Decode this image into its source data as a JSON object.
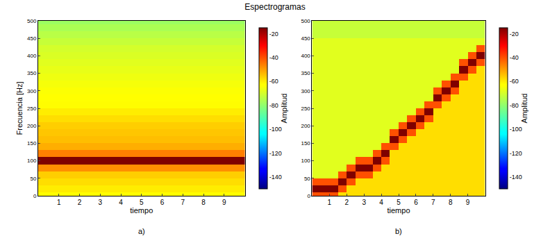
{
  "title": "Espectrogramas",
  "chart_data": [
    {
      "type": "heatmap",
      "label": "a)",
      "x_label": "tiempo",
      "y_label": "Frecuencia [Hz]",
      "x": [
        0.5,
        1.5,
        2.5,
        3.5,
        4.5,
        5.5,
        6.5,
        7.5,
        8.5,
        9.5
      ],
      "y": [
        0,
        20,
        40,
        60,
        80,
        100,
        120,
        140,
        160,
        180,
        200,
        220,
        240,
        260,
        280,
        300,
        320,
        340,
        360,
        380,
        400,
        420,
        440,
        460,
        480,
        500
      ],
      "z": [
        [
          -62,
          -62,
          -62,
          -62,
          -62,
          -62,
          -62,
          -62,
          -62,
          -62
        ],
        [
          -60,
          -60,
          -60,
          -60,
          -60,
          -60,
          -60,
          -60,
          -60,
          -60
        ],
        [
          -58,
          -58,
          -58,
          -58,
          -58,
          -58,
          -58,
          -58,
          -58,
          -58
        ],
        [
          -56,
          -56,
          -56,
          -56,
          -56,
          -56,
          -56,
          -56,
          -56,
          -56
        ],
        [
          -48,
          -48,
          -48,
          -48,
          -48,
          -48,
          -48,
          -48,
          -48,
          -48
        ],
        [
          -15,
          -15,
          -15,
          -15,
          -15,
          -15,
          -15,
          -15,
          -15,
          -15
        ],
        [
          -46,
          -46,
          -46,
          -46,
          -46,
          -46,
          -46,
          -46,
          -46,
          -46
        ],
        [
          -52,
          -52,
          -52,
          -52,
          -52,
          -52,
          -52,
          -52,
          -52,
          -52
        ],
        [
          -54,
          -54,
          -54,
          -54,
          -54,
          -54,
          -54,
          -54,
          -54,
          -54
        ],
        [
          -55,
          -55,
          -55,
          -55,
          -55,
          -55,
          -55,
          -55,
          -55,
          -55
        ],
        [
          -56,
          -56,
          -56,
          -56,
          -56,
          -56,
          -56,
          -56,
          -56,
          -56
        ],
        [
          -58,
          -58,
          -58,
          -58,
          -58,
          -58,
          -58,
          -58,
          -58,
          -58
        ],
        [
          -60,
          -60,
          -60,
          -60,
          -60,
          -60,
          -60,
          -60,
          -60,
          -60
        ],
        [
          -62,
          -62,
          -62,
          -62,
          -62,
          -62,
          -62,
          -62,
          -62,
          -62
        ],
        [
          -63,
          -63,
          -63,
          -63,
          -63,
          -63,
          -63,
          -63,
          -63,
          -63
        ],
        [
          -64,
          -64,
          -64,
          -64,
          -64,
          -64,
          -64,
          -64,
          -64,
          -64
        ],
        [
          -65,
          -65,
          -65,
          -65,
          -65,
          -65,
          -65,
          -65,
          -65,
          -65
        ],
        [
          -66,
          -66,
          -66,
          -66,
          -66,
          -66,
          -66,
          -66,
          -66,
          -66
        ],
        [
          -67,
          -67,
          -67,
          -67,
          -67,
          -67,
          -67,
          -67,
          -67,
          -67
        ],
        [
          -68,
          -68,
          -68,
          -68,
          -68,
          -68,
          -68,
          -68,
          -68,
          -68
        ],
        [
          -69,
          -69,
          -69,
          -69,
          -69,
          -69,
          -69,
          -69,
          -69,
          -69
        ],
        [
          -70,
          -70,
          -70,
          -70,
          -70,
          -70,
          -70,
          -70,
          -70,
          -70
        ],
        [
          -72,
          -72,
          -72,
          -72,
          -72,
          -72,
          -72,
          -72,
          -72,
          -72
        ],
        [
          -74,
          -74,
          -74,
          -74,
          -74,
          -74,
          -74,
          -74,
          -74,
          -74
        ],
        [
          -76,
          -76,
          -76,
          -76,
          -76,
          -76,
          -76,
          -76,
          -76,
          -76
        ],
        [
          -78,
          -78,
          -78,
          -78,
          -78,
          -78,
          -78,
          -78,
          -78,
          -78
        ]
      ],
      "xlim": [
        0,
        10
      ],
      "xticks": [
        1,
        2,
        3,
        4,
        5,
        6,
        7,
        8,
        9
      ],
      "ylim": [
        0,
        500
      ],
      "yticks": [
        0,
        50,
        100,
        150,
        200,
        250,
        300,
        350,
        400,
        450,
        500
      ],
      "colorbar": {
        "title": "Amplitud",
        "range": [
          -150,
          -15
        ],
        "ticks": [
          -20,
          -40,
          -60,
          -80,
          -100,
          -120,
          -140
        ]
      }
    },
    {
      "type": "heatmap",
      "label": "b)",
      "x_label": "tiempo",
      "x": [
        0.25,
        0.75,
        1.25,
        1.75,
        2.25,
        2.75,
        3.25,
        3.75,
        4.25,
        4.75,
        5.25,
        5.75,
        6.25,
        6.75,
        7.25,
        7.75,
        8.25,
        8.75,
        9.25,
        9.75
      ],
      "y": [
        0,
        20,
        40,
        60,
        80,
        100,
        120,
        140,
        160,
        180,
        200,
        220,
        240,
        260,
        280,
        300,
        320,
        340,
        360,
        380,
        400,
        420,
        440,
        460,
        480,
        500
      ],
      "z": [
        [
          -40,
          -40,
          -40,
          -58,
          -58,
          -58,
          -58,
          -58,
          -58,
          -58,
          -58,
          -58,
          -58,
          -58,
          -58,
          -58,
          -58,
          -58,
          -58,
          -58
        ],
        [
          -15,
          -15,
          -15,
          -40,
          -58,
          -58,
          -58,
          -58,
          -58,
          -58,
          -58,
          -58,
          -58,
          -58,
          -58,
          -58,
          -58,
          -58,
          -58,
          -58
        ],
        [
          -40,
          -40,
          -40,
          -15,
          -40,
          -58,
          -58,
          -58,
          -58,
          -58,
          -58,
          -58,
          -58,
          -58,
          -58,
          -58,
          -58,
          -58,
          -58,
          -58
        ],
        [
          -68,
          -68,
          -68,
          -40,
          -15,
          -40,
          -40,
          -58,
          -58,
          -58,
          -58,
          -58,
          -58,
          -58,
          -58,
          -58,
          -58,
          -58,
          -58,
          -58
        ],
        [
          -68,
          -68,
          -68,
          -68,
          -40,
          -15,
          -15,
          -40,
          -58,
          -58,
          -58,
          -58,
          -58,
          -58,
          -58,
          -58,
          -58,
          -58,
          -58,
          -58
        ],
        [
          -68,
          -68,
          -68,
          -68,
          -68,
          -40,
          -40,
          -15,
          -40,
          -58,
          -58,
          -58,
          -58,
          -58,
          -58,
          -58,
          -58,
          -58,
          -58,
          -58
        ],
        [
          -68,
          -68,
          -68,
          -68,
          -68,
          -68,
          -68,
          -40,
          -15,
          -58,
          -58,
          -58,
          -58,
          -58,
          -58,
          -58,
          -58,
          -58,
          -58,
          -58
        ],
        [
          -68,
          -68,
          -68,
          -68,
          -68,
          -68,
          -68,
          -68,
          -40,
          -40,
          -58,
          -58,
          -58,
          -58,
          -58,
          -58,
          -58,
          -58,
          -58,
          -58
        ],
        [
          -68,
          -68,
          -68,
          -68,
          -68,
          -68,
          -68,
          -68,
          -68,
          -15,
          -40,
          -58,
          -58,
          -58,
          -58,
          -58,
          -58,
          -58,
          -58,
          -58
        ],
        [
          -68,
          -68,
          -68,
          -68,
          -68,
          -68,
          -68,
          -68,
          -68,
          -40,
          -15,
          -40,
          -58,
          -58,
          -58,
          -58,
          -58,
          -58,
          -58,
          -58
        ],
        [
          -68,
          -68,
          -68,
          -68,
          -68,
          -68,
          -68,
          -68,
          -68,
          -68,
          -40,
          -15,
          -40,
          -58,
          -58,
          -58,
          -58,
          -58,
          -58,
          -58
        ],
        [
          -68,
          -68,
          -68,
          -68,
          -68,
          -68,
          -68,
          -68,
          -68,
          -68,
          -68,
          -40,
          -15,
          -40,
          -58,
          -58,
          -58,
          -58,
          -58,
          -58
        ],
        [
          -68,
          -68,
          -68,
          -68,
          -68,
          -68,
          -68,
          -68,
          -68,
          -68,
          -68,
          -68,
          -40,
          -15,
          -58,
          -58,
          -58,
          -58,
          -58,
          -58
        ],
        [
          -68,
          -68,
          -68,
          -68,
          -68,
          -68,
          -68,
          -68,
          -68,
          -68,
          -68,
          -68,
          -68,
          -40,
          -40,
          -58,
          -58,
          -58,
          -58,
          -58
        ],
        [
          -68,
          -68,
          -68,
          -68,
          -68,
          -68,
          -68,
          -68,
          -68,
          -68,
          -68,
          -68,
          -68,
          -68,
          -15,
          -40,
          -58,
          -58,
          -58,
          -58
        ],
        [
          -68,
          -68,
          -68,
          -68,
          -68,
          -68,
          -68,
          -68,
          -68,
          -68,
          -68,
          -68,
          -68,
          -68,
          -40,
          -15,
          -40,
          -58,
          -58,
          -58
        ],
        [
          -68,
          -68,
          -68,
          -68,
          -68,
          -68,
          -68,
          -68,
          -68,
          -68,
          -68,
          -68,
          -68,
          -68,
          -68,
          -40,
          -15,
          -58,
          -58,
          -58
        ],
        [
          -68,
          -68,
          -68,
          -68,
          -68,
          -68,
          -68,
          -68,
          -68,
          -68,
          -68,
          -68,
          -68,
          -68,
          -68,
          -68,
          -40,
          -40,
          -58,
          -58
        ],
        [
          -68,
          -68,
          -68,
          -68,
          -68,
          -68,
          -68,
          -68,
          -68,
          -68,
          -68,
          -68,
          -68,
          -68,
          -68,
          -68,
          -68,
          -15,
          -40,
          -58
        ],
        [
          -68,
          -68,
          -68,
          -68,
          -68,
          -68,
          -68,
          -68,
          -68,
          -68,
          -68,
          -68,
          -68,
          -68,
          -68,
          -68,
          -68,
          -40,
          -15,
          -40
        ],
        [
          -68,
          -68,
          -68,
          -68,
          -68,
          -68,
          -68,
          -68,
          -68,
          -68,
          -68,
          -68,
          -68,
          -68,
          -68,
          -68,
          -68,
          -68,
          -40,
          -15
        ],
        [
          -68,
          -68,
          -68,
          -68,
          -68,
          -68,
          -68,
          -68,
          -68,
          -68,
          -68,
          -68,
          -68,
          -68,
          -68,
          -68,
          -68,
          -68,
          -68,
          -40
        ],
        [
          -68,
          -68,
          -68,
          -68,
          -68,
          -68,
          -68,
          -68,
          -68,
          -68,
          -68,
          -68,
          -68,
          -68,
          -68,
          -68,
          -68,
          -68,
          -68,
          -68
        ],
        [
          -72,
          -72,
          -72,
          -72,
          -72,
          -72,
          -72,
          -72,
          -72,
          -72,
          -72,
          -72,
          -72,
          -72,
          -72,
          -72,
          -72,
          -72,
          -72,
          -72
        ],
        [
          -72,
          -72,
          -72,
          -72,
          -72,
          -72,
          -72,
          -72,
          -72,
          -72,
          -72,
          -72,
          -72,
          -72,
          -72,
          -72,
          -72,
          -72,
          -72,
          -72
        ],
        [
          -72,
          -72,
          -72,
          -72,
          -72,
          -72,
          -72,
          -72,
          -72,
          -72,
          -72,
          -72,
          -72,
          -72,
          -72,
          -72,
          -72,
          -72,
          -72,
          -72
        ]
      ],
      "xlim": [
        0,
        10
      ],
      "xticks": [
        1,
        2,
        3,
        4,
        5,
        6,
        7,
        8,
        9
      ],
      "ylim": [
        0,
        500
      ],
      "yticks": [
        0,
        50,
        100,
        150,
        200,
        250,
        300,
        350,
        400,
        450,
        500
      ],
      "colorbar": {
        "title": "Amplitud",
        "range": [
          -150,
          -15
        ],
        "ticks": [
          -20,
          -40,
          -60,
          -80,
          -100,
          -120,
          -140
        ]
      }
    }
  ]
}
